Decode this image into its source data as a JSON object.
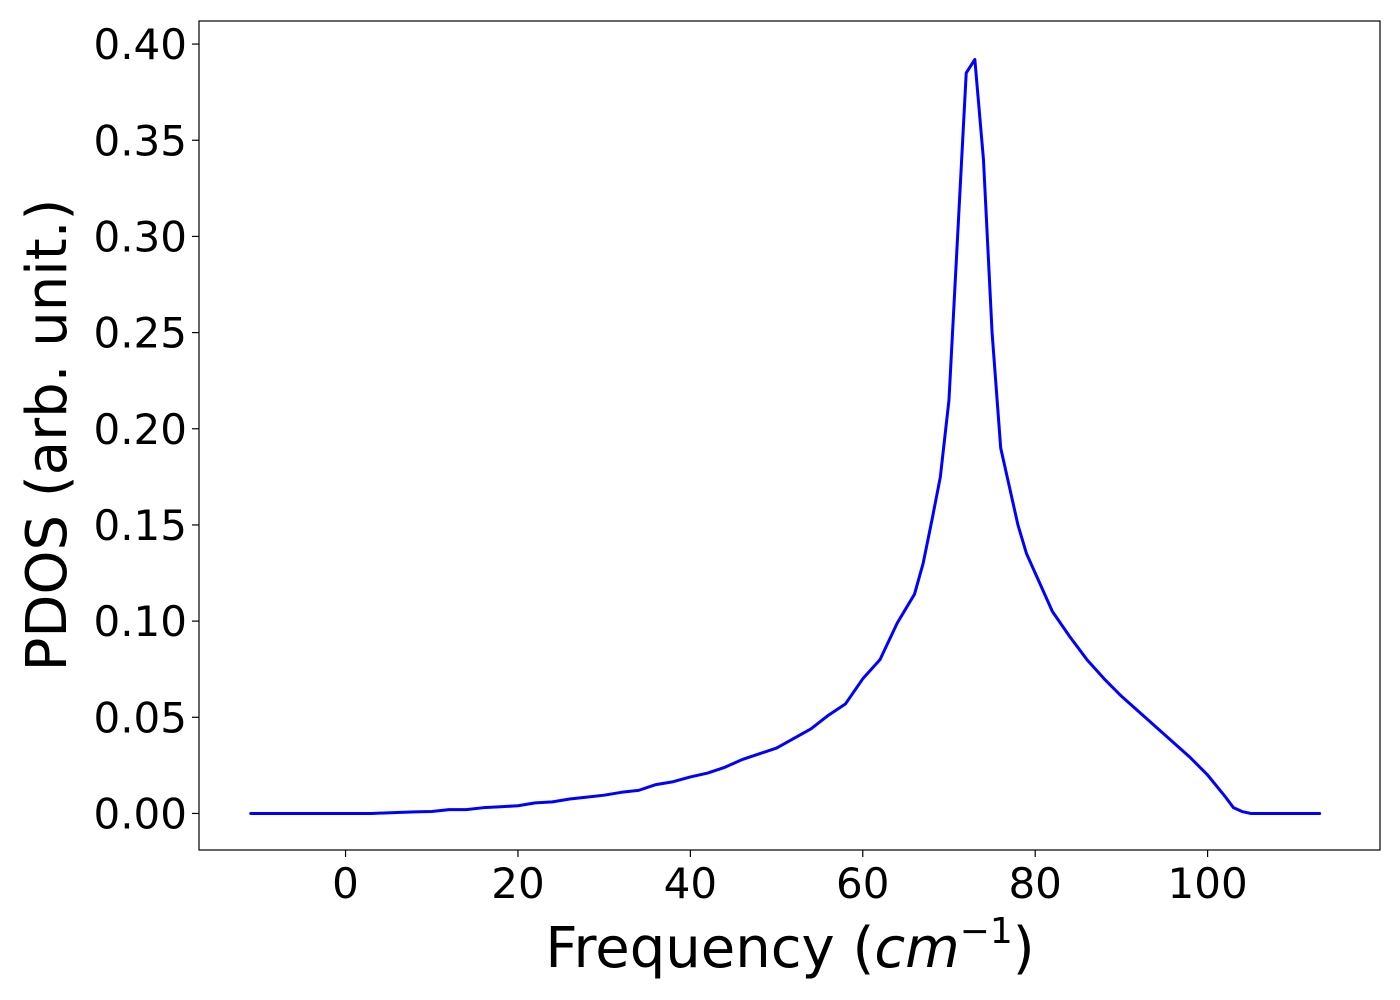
{
  "chart_data": {
    "type": "line",
    "xlabel_main": "Frequency (",
    "xlabel_math": "cm",
    "xlabel_sup": "−1",
    "xlabel_close": ")",
    "ylabel": "PDOS (arb. unit.)",
    "xlim": [
      -17,
      120
    ],
    "ylim": [
      -0.019,
      0.412
    ],
    "xticks": [
      0,
      20,
      40,
      60,
      80,
      100
    ],
    "xtick_labels": [
      "0",
      "20",
      "40",
      "60",
      "80",
      "100"
    ],
    "yticks": [
      0.0,
      0.05,
      0.1,
      0.15,
      0.2,
      0.25,
      0.3,
      0.35,
      0.4
    ],
    "ytick_labels": [
      "0.00",
      "0.05",
      "0.10",
      "0.15",
      "0.20",
      "0.25",
      "0.30",
      "0.35",
      "0.40"
    ],
    "grid": false,
    "series": [
      {
        "color": "#0000ff",
        "x": [
          -11,
          -5,
          0,
          3,
          6,
          8,
          10,
          12,
          14,
          16,
          18,
          20,
          22,
          24,
          26,
          28,
          30,
          32,
          34,
          36,
          38,
          40,
          42,
          44,
          46,
          48,
          50,
          52,
          54,
          56,
          58,
          60,
          62,
          64,
          66,
          67,
          68,
          69,
          70,
          71,
          72,
          73,
          74,
          75,
          76,
          77,
          78,
          79,
          80,
          82,
          84,
          86,
          88,
          90,
          92,
          94,
          96,
          98,
          100,
          102,
          103,
          104,
          105,
          108,
          113
        ],
        "y": [
          0.0,
          0.0,
          0.0,
          0.0,
          0.0005,
          0.0008,
          0.001,
          0.002,
          0.002,
          0.003,
          0.0035,
          0.004,
          0.0055,
          0.006,
          0.0075,
          0.0085,
          0.0095,
          0.011,
          0.012,
          0.015,
          0.0165,
          0.019,
          0.021,
          0.024,
          0.028,
          0.031,
          0.034,
          0.039,
          0.044,
          0.051,
          0.057,
          0.07,
          0.08,
          0.099,
          0.114,
          0.13,
          0.152,
          0.175,
          0.215,
          0.3,
          0.385,
          0.392,
          0.34,
          0.25,
          0.19,
          0.17,
          0.15,
          0.135,
          0.125,
          0.105,
          0.092,
          0.08,
          0.07,
          0.061,
          0.053,
          0.045,
          0.037,
          0.029,
          0.02,
          0.009,
          0.003,
          0.001,
          0.0,
          0.0,
          0.0
        ]
      }
    ]
  }
}
